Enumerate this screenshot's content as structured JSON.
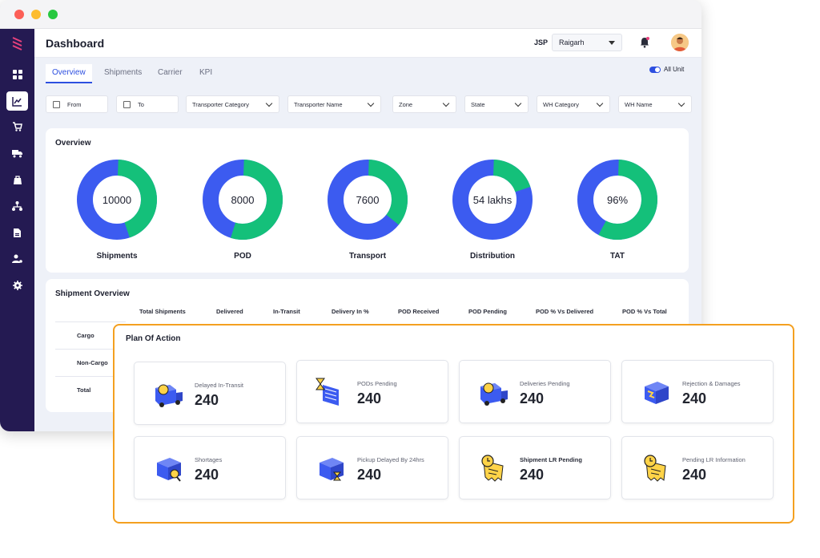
{
  "window": {
    "traffic_lights": [
      "#fc5f57",
      "#fdbc2e",
      "#28c840"
    ]
  },
  "header": {
    "title": "Dashboard",
    "unit_code": "JSP",
    "location_select": "Raigarh"
  },
  "tabs": [
    {
      "label": "Overview",
      "active": true
    },
    {
      "label": "Shipments",
      "active": false
    },
    {
      "label": "Carrier",
      "active": false
    },
    {
      "label": "KPI",
      "active": false
    }
  ],
  "toggle": {
    "label": "All Unit",
    "on": true
  },
  "filters": {
    "from": "From",
    "to": "To",
    "transporter_category": "Transporter Category",
    "transporter_name": "Transporter Name",
    "zone": "Zone",
    "state": "State",
    "wh_category": "WH Category",
    "wh_name": "WH Name"
  },
  "overview": {
    "title": "Overview",
    "colors": {
      "primary": "#3c5bf0",
      "secondary": "#14c07a"
    },
    "donuts": [
      {
        "label": "Shipments",
        "center": "10000",
        "green_share": 0.45
      },
      {
        "label": "POD",
        "center": "8000",
        "green_share": 0.55
      },
      {
        "label": "Transport",
        "center": "7600",
        "green_share": 0.36
      },
      {
        "label": "Distribution",
        "center": "54 lakhs",
        "green_share": 0.2
      },
      {
        "label": "TAT",
        "center": "96%",
        "green_share": 0.58
      }
    ]
  },
  "shipment_overview": {
    "title": "Shipment Overview",
    "columns": [
      "Total Shipments",
      "Delivered",
      "In-Transit",
      "Delivery In %",
      "POD Received",
      "POD Pending",
      "POD % Vs Delivered",
      "POD % Vs Total"
    ],
    "rows": [
      "Cargo",
      "Non-Cargo",
      "Total"
    ]
  },
  "plan_of_action": {
    "title": "Plan Of Action",
    "border_color": "#f4a020",
    "tiles": [
      {
        "label": "Delayed In-Transit",
        "value": "240",
        "icon": "truck-clock-icon"
      },
      {
        "label": "PODs Pending",
        "value": "240",
        "icon": "document-hourglass-icon"
      },
      {
        "label": "Deliveries Pending",
        "value": "240",
        "icon": "truck-clock-icon"
      },
      {
        "label": "Rejection & Damages",
        "value": "240",
        "icon": "box-damaged-icon"
      },
      {
        "label": "Shortages",
        "value": "240",
        "icon": "box-search-icon"
      },
      {
        "label": "Pickup Delayed By 24hrs",
        "value": "240",
        "icon": "box-hourglass-icon"
      },
      {
        "label": "Shipment LR Pending",
        "value": "240",
        "icon": "receipt-clock-icon"
      },
      {
        "label": "Pending LR Information",
        "value": "240",
        "icon": "receipt-clock-icon"
      }
    ]
  }
}
